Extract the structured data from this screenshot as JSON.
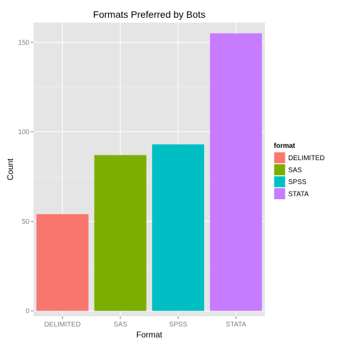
{
  "chart_data": {
    "type": "bar",
    "title": "Formats Preferred by Bots",
    "xlabel": "Format",
    "ylabel": "Count",
    "categories": [
      "DELIMITED",
      "SAS",
      "SPSS",
      "STATA"
    ],
    "values": [
      54,
      87,
      93,
      155
    ],
    "colors": [
      "#F8766D",
      "#7CAE00",
      "#00BFC4",
      "#C77CFF"
    ],
    "ylim": [
      -3,
      161
    ],
    "yticks": [
      0,
      50,
      100,
      150
    ],
    "grid": true,
    "panel_background": "#E5E5E5",
    "grid_color": "#FFFFFF",
    "legend": {
      "title": "format",
      "position": "right",
      "entries": [
        "DELIMITED",
        "SAS",
        "SPSS",
        "STATA"
      ]
    }
  }
}
